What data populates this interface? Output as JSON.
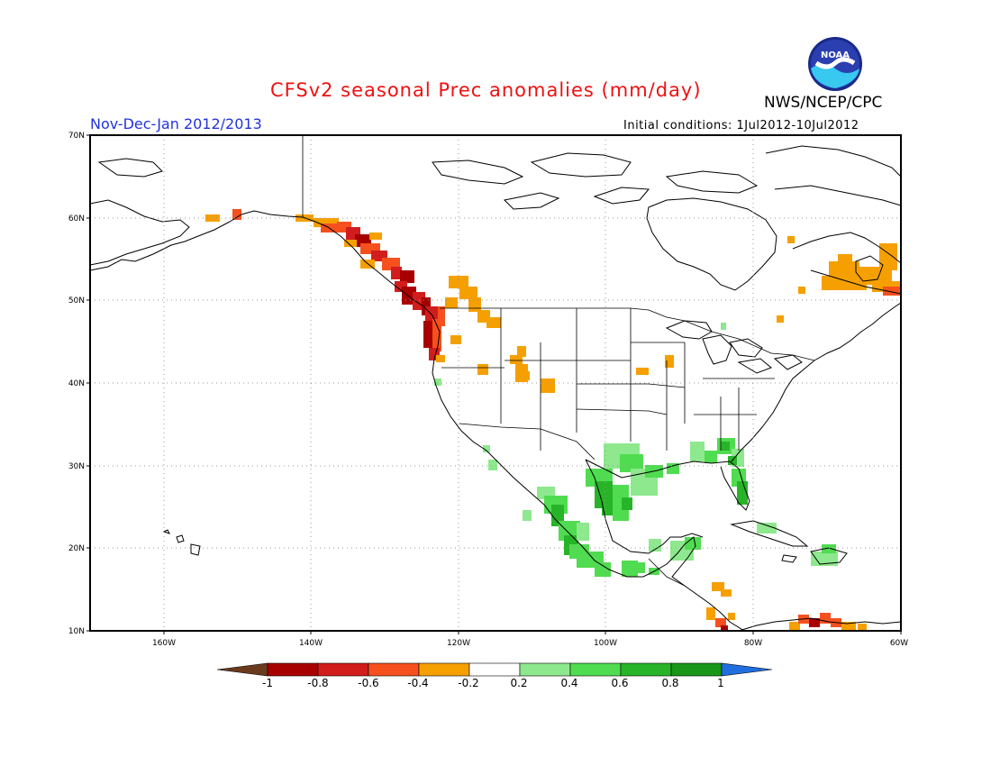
{
  "header": {
    "title": "CFSv2 seasonal Prec anomalies (mm/day)",
    "agency": "NWS/NCEP/CPC",
    "period": "Nov-Dec-Jan 2012/2013",
    "initial_conditions": "Initial conditions: 1Jul2012-10Jul2012",
    "logo_text": "NOAA"
  },
  "map": {
    "lat_labels": [
      "70N",
      "60N",
      "50N",
      "40N",
      "30N",
      "20N",
      "10N"
    ],
    "lon_labels": [
      "160W",
      "140W",
      "120W",
      "100W",
      "80W",
      "60W"
    ],
    "lon_range": [
      -170,
      -60
    ],
    "lat_range": [
      10,
      70
    ]
  },
  "colorbar": {
    "labels": [
      "-1",
      "-0.8",
      "-0.6",
      "-0.4",
      "-0.2",
      "0.2",
      "0.4",
      "0.6",
      "0.8",
      "1"
    ],
    "colors": [
      "#6b3a1e",
      "#a80000",
      "#d21d1d",
      "#f5501e",
      "#f5a000",
      "#ffffff",
      "#8ee88e",
      "#50dc50",
      "#28b428",
      "#189618",
      "#1f6fdf"
    ]
  },
  "anomaly_colors": {
    "dark_red": "#a80000",
    "red": "#d21d1d",
    "orange_red": "#f5501e",
    "orange": "#f5a000",
    "light_green": "#8ee88e",
    "green": "#50dc50",
    "dark_green": "#28b428"
  }
}
